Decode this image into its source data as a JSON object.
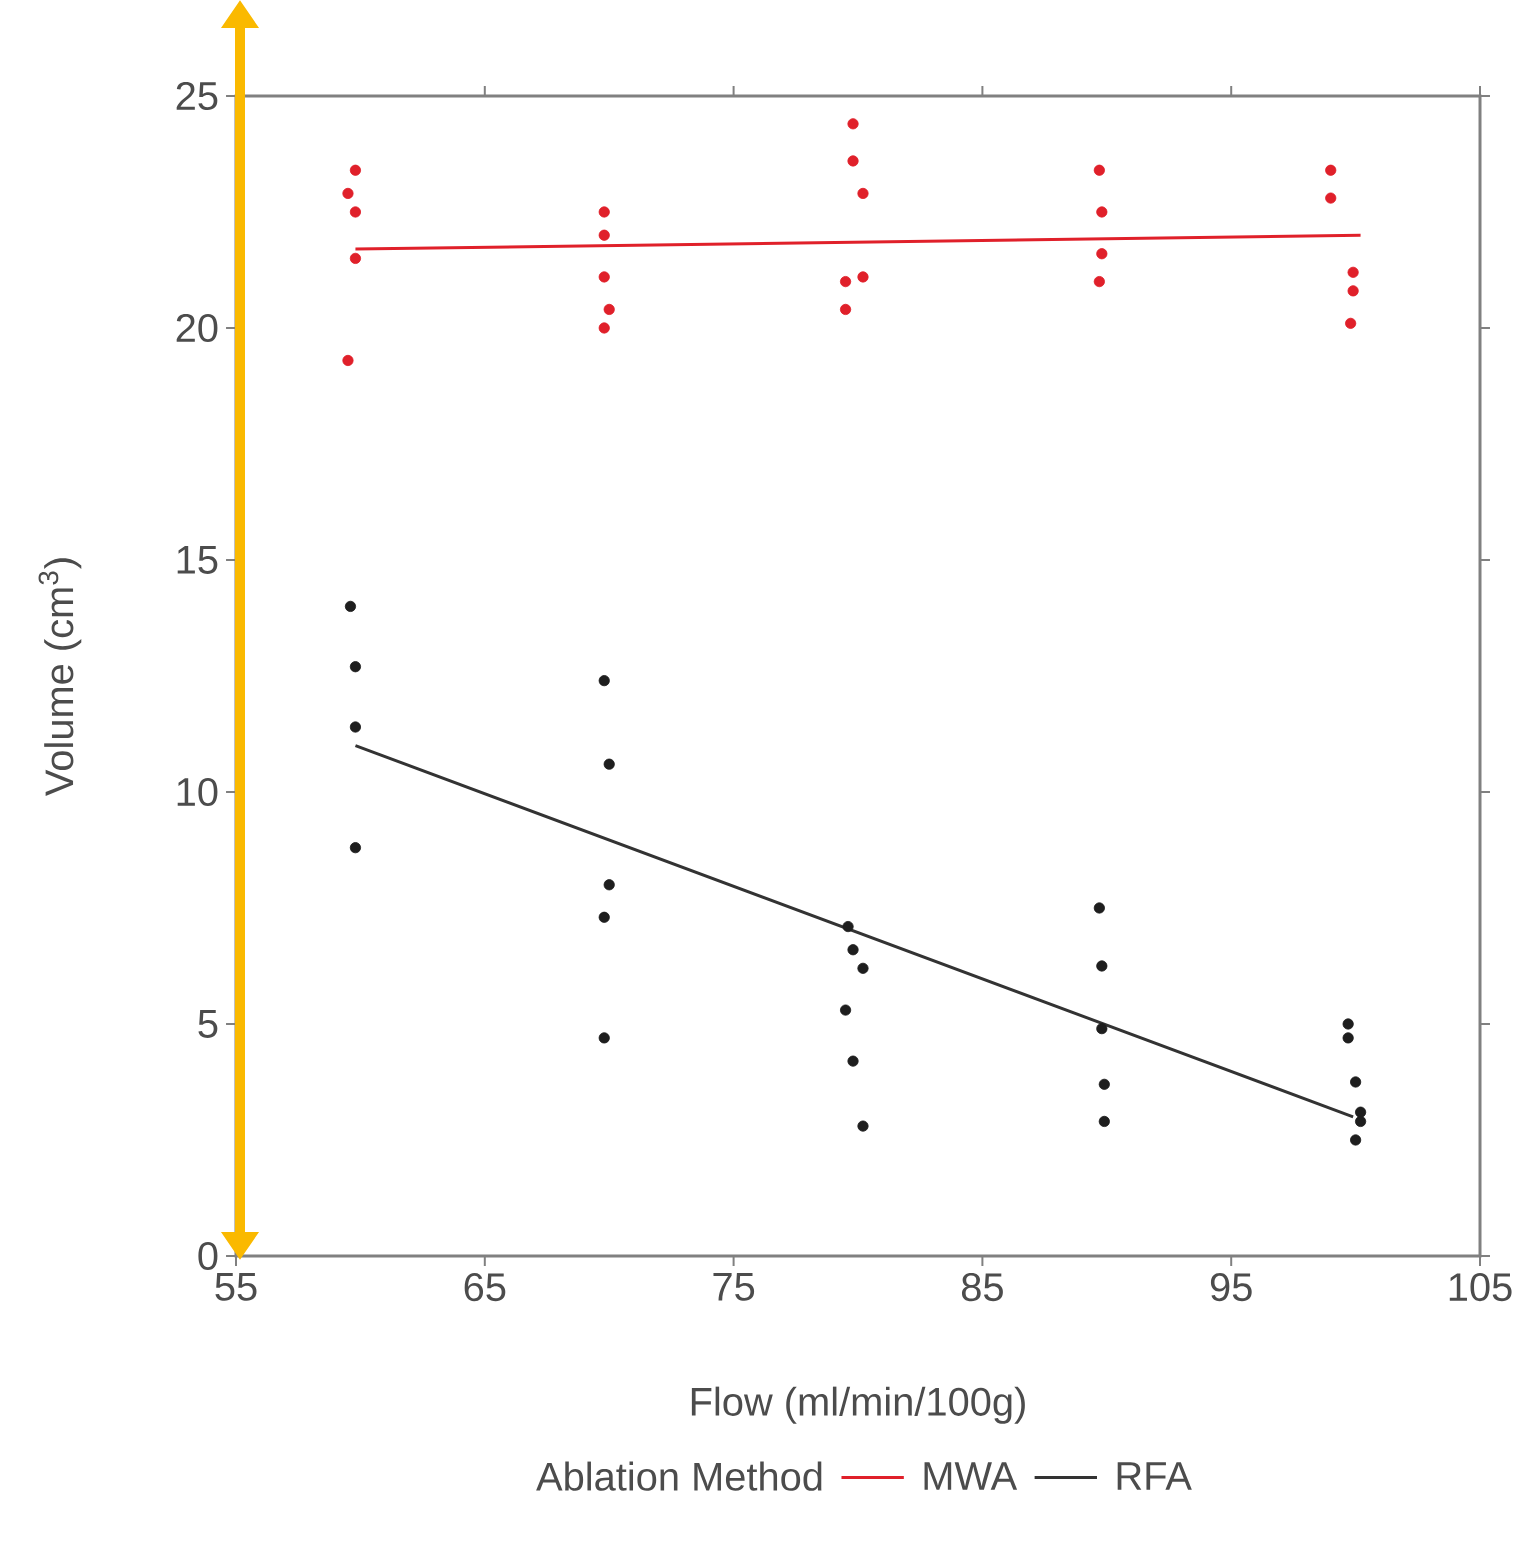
{
  "chart_data": {
    "type": "scatter",
    "xlabel": "Flow (ml/min/100g)",
    "ylabel": "Volume (cm$^{3}$)",
    "legend_title": "Ablation Method",
    "xlim": [
      55,
      105
    ],
    "xticks": [
      55,
      65,
      75,
      85,
      95,
      105
    ],
    "ylim": [
      0,
      25
    ],
    "yticks": [
      0,
      5,
      10,
      15,
      20,
      25
    ],
    "grid": false,
    "legend": "bottom",
    "marker": "circle",
    "series": [
      {
        "color": "#e0202a",
        "x": [
          59.8,
          59.5,
          59.8,
          59.8,
          59.5,
          69.8,
          69.8,
          69.8,
          70.0,
          69.8,
          79.8,
          79.8,
          80.2,
          79.5,
          80.2,
          79.5,
          89.7,
          89.8,
          89.8,
          89.7,
          99.0,
          99.0,
          99.9,
          99.9,
          99.8
        ],
        "values": [
          23.4,
          22.9,
          22.5,
          21.5,
          19.3,
          22.5,
          22.0,
          21.1,
          20.4,
          20.0,
          24.4,
          23.6,
          22.9,
          21.0,
          21.1,
          20.4,
          23.4,
          22.5,
          21.6,
          21.0,
          23.4,
          22.8,
          21.2,
          20.8,
          20.1
        ]
      },
      {
        "color": "#1e1e1e",
        "x": [
          59.6,
          59.8,
          59.8,
          59.8,
          69.8,
          70.0,
          70.0,
          69.8,
          69.8,
          79.6,
          79.8,
          80.2,
          79.5,
          79.8,
          80.2,
          89.7,
          89.8,
          89.8,
          89.9,
          89.9,
          99.7,
          99.7,
          100.0,
          100.2,
          100.2,
          100.0
        ],
        "values": [
          14.0,
          12.7,
          11.4,
          8.8,
          12.4,
          10.6,
          8.0,
          7.3,
          4.7,
          7.1,
          6.6,
          6.2,
          5.3,
          4.2,
          2.8,
          7.5,
          6.25,
          4.9,
          3.7,
          2.9,
          5.0,
          4.7,
          3.75,
          3.1,
          2.9,
          2.5
        ]
      },
      {
        "type": "line",
        "name": "MWA",
        "color": "#e0202a",
        "marker": "none",
        "x": [
          59.8,
          100.2
        ],
        "values": [
          21.7,
          22.0
        ]
      },
      {
        "type": "line",
        "name": "RFA",
        "color": "#333333",
        "marker": "none",
        "x": [
          59.8,
          99.9
        ],
        "values": [
          11.0,
          3.0
        ]
      }
    ]
  }
}
